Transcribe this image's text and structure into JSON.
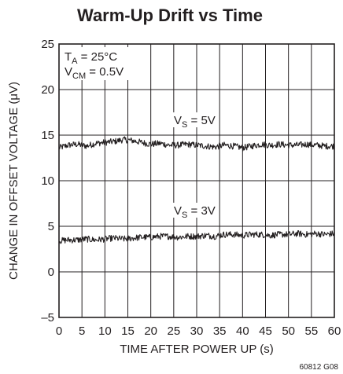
{
  "chart_data": {
    "type": "line",
    "title": "Warm-Up Drift vs Time",
    "xlabel": "TIME AFTER POWER UP (s)",
    "ylabel": "CHANGE IN OFFSET VOLTAGE (μV)",
    "xlim": [
      0,
      60
    ],
    "ylim": [
      -5,
      25
    ],
    "x_ticks": [
      "0",
      "5",
      "10",
      "15",
      "20",
      "25",
      "30",
      "35",
      "40",
      "45",
      "50",
      "55",
      "60"
    ],
    "y_ticks": [
      "25",
      "20",
      "15",
      "10",
      "5",
      "0",
      "–5"
    ],
    "grid": true,
    "conditions": {
      "ta_main": "T",
      "ta_sub": "A",
      "ta_rest": " = 25°C",
      "vcm_main": "V",
      "vcm_sub": "CM",
      "vcm_rest": " = 0.5V"
    },
    "series": [
      {
        "label_main": "V",
        "label_sub": "S",
        "label_rest": " = 5V",
        "x": [
          0,
          2,
          4,
          6,
          8,
          10,
          12,
          14,
          16,
          18,
          20,
          22,
          24,
          26,
          28,
          30,
          32,
          34,
          36,
          38,
          40,
          42,
          44,
          46,
          48,
          50,
          52,
          54,
          56,
          58,
          60
        ],
        "y": [
          13.6,
          13.9,
          14.0,
          13.8,
          14.1,
          14.2,
          14.3,
          14.5,
          14.4,
          14.2,
          14.0,
          14.1,
          13.9,
          13.9,
          14.0,
          13.9,
          13.8,
          13.7,
          13.9,
          13.8,
          13.6,
          13.8,
          14.0,
          13.9,
          14.0,
          13.9,
          13.9,
          14.0,
          13.9,
          13.8,
          13.8
        ]
      },
      {
        "label_main": "V",
        "label_sub": "S",
        "label_rest": " = 3V",
        "x": [
          0,
          2,
          4,
          6,
          8,
          10,
          12,
          14,
          16,
          18,
          20,
          22,
          24,
          26,
          28,
          30,
          32,
          34,
          36,
          38,
          40,
          42,
          44,
          46,
          48,
          50,
          52,
          54,
          56,
          58,
          60
        ],
        "y": [
          3.4,
          3.5,
          3.5,
          3.6,
          3.5,
          3.6,
          3.7,
          3.6,
          3.7,
          3.8,
          3.8,
          3.9,
          3.9,
          3.8,
          3.9,
          3.9,
          4.0,
          3.9,
          4.1,
          4.1,
          4.0,
          4.1,
          4.1,
          4.0,
          4.1,
          4.1,
          4.2,
          4.1,
          4.2,
          4.1,
          4.2
        ]
      }
    ],
    "figure_id": "60812 G08"
  }
}
